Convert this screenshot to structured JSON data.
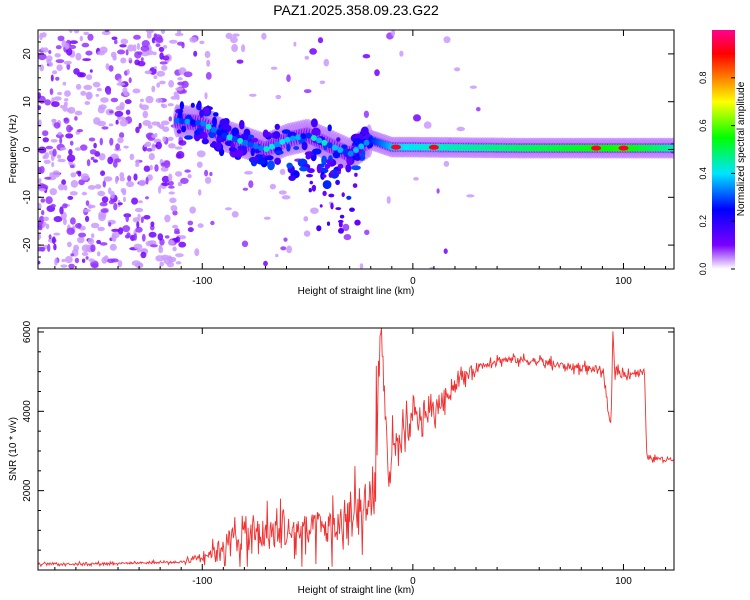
{
  "title": "PAZ1.2025.358.09.23.G22",
  "chart_data": [
    {
      "type": "heatmap",
      "name": "spectrogram",
      "xlabel": "Height of straight line (km)",
      "ylabel": "Frequency (Hz)",
      "xlim": [
        -178,
        124
      ],
      "ylim": [
        -25,
        25
      ],
      "xticks": [
        -100,
        0,
        100
      ],
      "yticks": [
        -20,
        -10,
        0,
        10,
        20
      ],
      "colorbar": {
        "label": "Normalized spectral amplitude",
        "range": [
          0,
          1
        ],
        "ticks": [
          "0.0",
          "0.2",
          "0.4",
          "0.6",
          "0.8"
        ],
        "colors": [
          "#ffffff",
          "#7a00ff",
          "#0000ff",
          "#00e5ff",
          "#00ff00",
          "#ffff00",
          "#ff8000",
          "#ff0000",
          "#ff0090"
        ]
      },
      "ridge": {
        "description": "main signal ridge frequency (Hz) vs height (km)",
        "x": [
          -112,
          -100,
          -90,
          -80,
          -70,
          -60,
          -50,
          -40,
          -30,
          -20,
          -10,
          0,
          50,
          100,
          124
        ],
        "y": [
          6,
          5.5,
          3,
          1.5,
          0,
          2,
          3,
          1,
          -1,
          2,
          0.5,
          0.5,
          0.3,
          0.3,
          0.3
        ],
        "peak_amplitudes": [
          0.35,
          0.3,
          0.25,
          0.2,
          0.25,
          0.3,
          0.25,
          0.2,
          0.3,
          0.35,
          0.5,
          0.55,
          0.65,
          0.75,
          0.6
        ],
        "hot_spots_x": [
          -8,
          10,
          87,
          100
        ]
      }
    },
    {
      "type": "line",
      "name": "snr",
      "xlabel": "Height of straight line (km)",
      "ylabel": "SNR (10 * v/v)",
      "xlim": [
        -178,
        124
      ],
      "ylim": [
        0,
        6100
      ],
      "xticks": [
        -100,
        0,
        100
      ],
      "yticks": [
        2000,
        4000,
        6000
      ],
      "series": [
        {
          "name": "SNR",
          "color": "#f03030",
          "x": [
            -178,
            -150,
            -130,
            -110,
            -95,
            -85,
            -75,
            -60,
            -45,
            -35,
            -25,
            -18,
            -15,
            -12,
            -5,
            0,
            10,
            20,
            30,
            40,
            50,
            60,
            70,
            80,
            90,
            94,
            95,
            96,
            100,
            110,
            111,
            115,
            124
          ],
          "y": [
            150,
            160,
            180,
            200,
            450,
            800,
            900,
            950,
            1000,
            1100,
            1400,
            2000,
            6000,
            2700,
            3200,
            3800,
            4000,
            4700,
            5100,
            5300,
            5300,
            5250,
            5150,
            5100,
            5050,
            3500,
            6000,
            5000,
            4950,
            5000,
            2850,
            2800,
            2800
          ],
          "noise_amplitude": [
            40,
            40,
            40,
            40,
            250,
            600,
            650,
            700,
            700,
            800,
            1000,
            1000,
            600,
            800,
            700,
            500,
            400,
            300,
            200,
            150,
            150,
            150,
            150,
            150,
            150,
            150,
            150,
            150,
            150,
            150,
            80,
            80,
            80
          ]
        }
      ]
    }
  ]
}
